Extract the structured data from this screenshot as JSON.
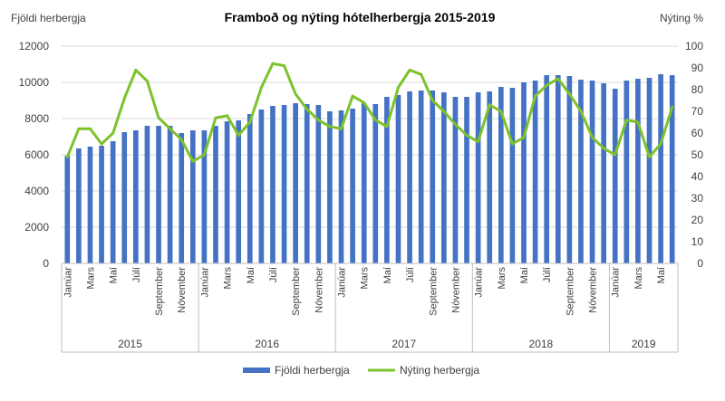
{
  "chart_data": {
    "type": "bar+line",
    "title": "Framboð og nýting hótelherbergja 2015-2019",
    "ylabel_left": "Fjöldi herbergja",
    "ylabel_right": "Nýting %",
    "ylim_left": [
      0,
      12000
    ],
    "yticks_left": [
      "0",
      "2000",
      "4000",
      "6000",
      "8000",
      "10000",
      "12000"
    ],
    "ylim_right": [
      0,
      100
    ],
    "yticks_right": [
      "0",
      "10",
      "20",
      "30",
      "40",
      "50",
      "60",
      "70",
      "80",
      "90",
      "100"
    ],
    "month_labels": [
      "Janúar",
      "Mars",
      "Maí",
      "Júlí",
      "September",
      "Nóvember"
    ],
    "years": [
      {
        "label": "2015",
        "months": 12
      },
      {
        "label": "2016",
        "months": 12
      },
      {
        "label": "2017",
        "months": 12
      },
      {
        "label": "2018",
        "months": 12
      },
      {
        "label": "2019",
        "months": 6
      }
    ],
    "series": [
      {
        "name": "Fjöldi herbergja",
        "kind": "bar",
        "color": "#4472C4",
        "values": [
          5950,
          6350,
          6450,
          6500,
          6750,
          7250,
          7350,
          7600,
          7600,
          7600,
          7200,
          7350,
          7350,
          7600,
          7850,
          7900,
          8250,
          8500,
          8700,
          8750,
          8850,
          8800,
          8750,
          8400,
          8450,
          8550,
          8850,
          8800,
          9200,
          9300,
          9500,
          9550,
          9550,
          9450,
          9200,
          9200,
          9450,
          9500,
          9750,
          9700,
          10000,
          10100,
          10400,
          10400,
          10350,
          10150,
          10100,
          9950,
          9650,
          10100,
          10200,
          10250,
          10450,
          10400
        ]
      },
      {
        "name": "Nýting herbergja",
        "kind": "line",
        "color": "#7DC22C",
        "values": [
          49,
          62,
          62,
          55,
          60,
          76,
          89,
          84,
          67,
          62,
          57,
          47,
          50,
          67,
          68,
          59,
          65,
          81,
          92,
          91,
          78,
          71,
          66,
          63,
          62,
          77,
          74,
          66,
          63,
          81,
          89,
          87,
          75,
          70,
          64,
          59,
          56,
          73,
          70,
          55,
          58,
          77,
          82,
          85,
          78,
          70,
          58,
          53,
          50,
          66,
          65,
          49,
          55,
          72
        ]
      }
    ],
    "legend": "bottom"
  }
}
